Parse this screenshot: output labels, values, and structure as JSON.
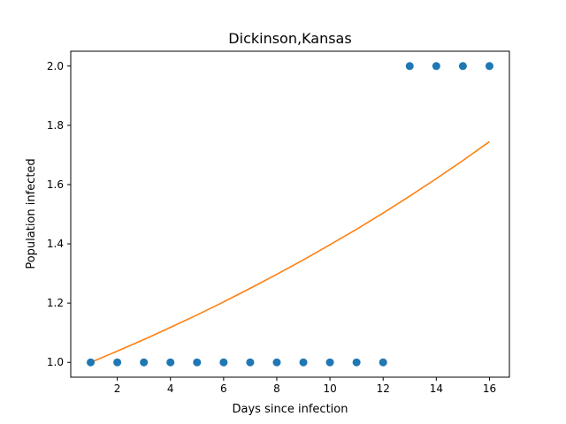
{
  "chart_data": {
    "type": "scatter",
    "title": "Dickinson,Kansas",
    "xlabel": "Days since infection",
    "ylabel": "Population infected",
    "xlim": [
      0.25,
      16.75
    ],
    "ylim": [
      0.95,
      2.05
    ],
    "xticks": [
      "2",
      "4",
      "6",
      "8",
      "10",
      "12",
      "14",
      "16"
    ],
    "yticks": [
      "1.0",
      "1.2",
      "1.4",
      "1.6",
      "1.8",
      "2.0"
    ],
    "grid": false,
    "series": [
      {
        "kind": "scatter",
        "color": "#1f77b4",
        "x": [
          1,
          2,
          3,
          4,
          5,
          6,
          7,
          8,
          9,
          10,
          11,
          12,
          13,
          14,
          15,
          16
        ],
        "y": [
          1,
          1,
          1,
          1,
          1,
          1,
          1,
          1,
          1,
          1,
          1,
          1,
          2,
          2,
          2,
          2
        ]
      },
      {
        "kind": "line",
        "color": "#ff7f0e",
        "x": [
          1,
          2,
          3,
          4,
          5,
          6,
          7,
          8,
          9,
          10,
          11,
          12,
          13,
          14,
          15,
          16
        ],
        "y": [
          1.0,
          1.038,
          1.077,
          1.118,
          1.16,
          1.204,
          1.25,
          1.297,
          1.346,
          1.397,
          1.449,
          1.504,
          1.561,
          1.62,
          1.681,
          1.745
        ]
      }
    ]
  }
}
